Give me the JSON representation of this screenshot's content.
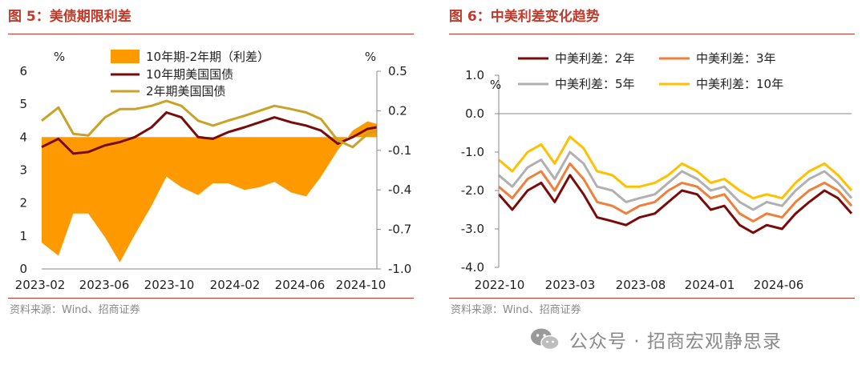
{
  "figures": {
    "left": {
      "title": "图 5：美债期限利差",
      "source": "资料来源：Wind、招商证券"
    },
    "right": {
      "title": "图 6：中美利差变化趋势",
      "source": "资料来源：Wind、招商证券"
    }
  },
  "watermark": {
    "text": "公众号 · 招商宏观静思录",
    "icon": "wechat-icon"
  },
  "colors": {
    "accent": "#c0392b",
    "orange": "#ff9900",
    "darkred": "#7a0b0b",
    "gold": "#c9a227",
    "orange2": "#f07f3c",
    "gray": "#b0b0b0",
    "yellow": "#ffc000"
  },
  "chart_data": [
    {
      "type": "area+line",
      "title": "美债期限利差",
      "left_axis": {
        "unit": "%",
        "ylim": [
          0,
          6
        ],
        "ticks": [
          0,
          1,
          2,
          3,
          4,
          5,
          6
        ]
      },
      "right_axis": {
        "unit": "%",
        "ylim": [
          -1.0,
          0.5
        ],
        "ticks": [
          0.5,
          0.2,
          -0.1,
          -0.4,
          -0.7,
          -1.0
        ],
        "tick_labels": [
          "0.5",
          "0.2",
          "-0.1",
          "-0.4",
          "-0.7",
          "-1.0"
        ]
      },
      "x_tick_labels": [
        "2023-02",
        "2023-06",
        "2023-10",
        "2024-02",
        "2024-06",
        "2024-10"
      ],
      "legend": [
        "10年期-2年期（利差）",
        "10年期美国国债",
        "2年期美国国债"
      ],
      "legend_placement": "top-center",
      "x": [
        2023.08,
        2023.17,
        2023.25,
        2023.33,
        2023.42,
        2023.5,
        2023.58,
        2023.67,
        2023.75,
        2023.83,
        2023.92,
        2024.0,
        2024.08,
        2024.17,
        2024.25,
        2024.33,
        2024.42,
        2024.5,
        2024.58,
        2024.67,
        2024.75,
        2024.83,
        2024.88
      ],
      "series": [
        {
          "name": "10年期-2年期（利差）",
          "axis": "right",
          "style": "area",
          "values": [
            -0.8,
            -0.9,
            -0.58,
            -0.58,
            -0.76,
            -0.95,
            -0.74,
            -0.52,
            -0.3,
            -0.38,
            -0.44,
            -0.35,
            -0.35,
            -0.4,
            -0.38,
            -0.34,
            -0.42,
            -0.45,
            -0.3,
            -0.1,
            0.05,
            0.12,
            0.1
          ]
        },
        {
          "name": "10年期美国国债",
          "axis": "left",
          "style": "line",
          "values": [
            3.7,
            3.95,
            3.5,
            3.55,
            3.75,
            3.85,
            4.0,
            4.3,
            4.75,
            4.6,
            4.0,
            3.95,
            4.15,
            4.3,
            4.45,
            4.6,
            4.45,
            4.35,
            4.2,
            3.8,
            4.0,
            4.25,
            4.3
          ]
        },
        {
          "name": "2年期美国国债",
          "axis": "left",
          "style": "line",
          "values": [
            4.5,
            4.9,
            4.1,
            4.05,
            4.6,
            4.85,
            4.85,
            4.95,
            5.1,
            4.95,
            4.5,
            4.35,
            4.5,
            4.65,
            4.8,
            4.95,
            4.85,
            4.75,
            4.55,
            3.9,
            3.7,
            4.1,
            4.2
          ]
        }
      ]
    },
    {
      "type": "line",
      "title": "中美利差变化趋势",
      "ylabel": "%",
      "ylim": [
        -4.0,
        1.0
      ],
      "y_ticks": [
        1.0,
        0.0,
        -1.0,
        -2.0,
        -3.0,
        -4.0
      ],
      "y_tick_labels": [
        "1.0",
        "0.0",
        "-1.0",
        "-2.0",
        "-3.0",
        "-4.0"
      ],
      "x_tick_labels": [
        "2022-10",
        "2023-03",
        "2023-08",
        "2024-01",
        "2024-06"
      ],
      "legend_placement": "top",
      "x": [
        2022.75,
        2022.83,
        2022.92,
        2023.0,
        2023.08,
        2023.17,
        2023.25,
        2023.33,
        2023.42,
        2023.5,
        2023.58,
        2023.67,
        2023.75,
        2023.83,
        2023.92,
        2024.0,
        2024.08,
        2024.17,
        2024.25,
        2024.33,
        2024.42,
        2024.5,
        2024.58,
        2024.67,
        2024.75,
        2024.83
      ],
      "series": [
        {
          "name": "中美利差：2年",
          "values": [
            -2.1,
            -2.5,
            -2.0,
            -1.8,
            -2.3,
            -1.6,
            -2.1,
            -2.7,
            -2.8,
            -2.9,
            -2.7,
            -2.6,
            -2.3,
            -2.0,
            -2.1,
            -2.5,
            -2.4,
            -2.9,
            -3.1,
            -2.9,
            -3.0,
            -2.6,
            -2.3,
            -2.0,
            -2.2,
            -2.6
          ]
        },
        {
          "name": "中美利差：3年",
          "values": [
            -1.9,
            -2.2,
            -1.7,
            -1.5,
            -2.0,
            -1.3,
            -1.7,
            -2.3,
            -2.4,
            -2.6,
            -2.4,
            -2.3,
            -2.0,
            -1.8,
            -1.9,
            -2.2,
            -2.1,
            -2.6,
            -2.8,
            -2.6,
            -2.7,
            -2.3,
            -2.0,
            -1.8,
            -2.0,
            -2.4
          ]
        },
        {
          "name": "中美利差：5年",
          "values": [
            -1.6,
            -1.9,
            -1.4,
            -1.2,
            -1.7,
            -1.0,
            -1.3,
            -1.9,
            -2.0,
            -2.3,
            -2.2,
            -2.1,
            -1.8,
            -1.5,
            -1.7,
            -2.0,
            -1.9,
            -2.3,
            -2.5,
            -2.3,
            -2.4,
            -2.0,
            -1.7,
            -1.5,
            -1.8,
            -2.2
          ]
        },
        {
          "name": "中美利差：10年",
          "values": [
            -1.2,
            -1.5,
            -1.0,
            -0.8,
            -1.3,
            -0.6,
            -0.9,
            -1.5,
            -1.6,
            -1.9,
            -1.9,
            -1.8,
            -1.6,
            -1.3,
            -1.5,
            -1.8,
            -1.7,
            -2.0,
            -2.2,
            -2.1,
            -2.2,
            -1.8,
            -1.5,
            -1.3,
            -1.6,
            -2.0
          ]
        }
      ]
    }
  ]
}
